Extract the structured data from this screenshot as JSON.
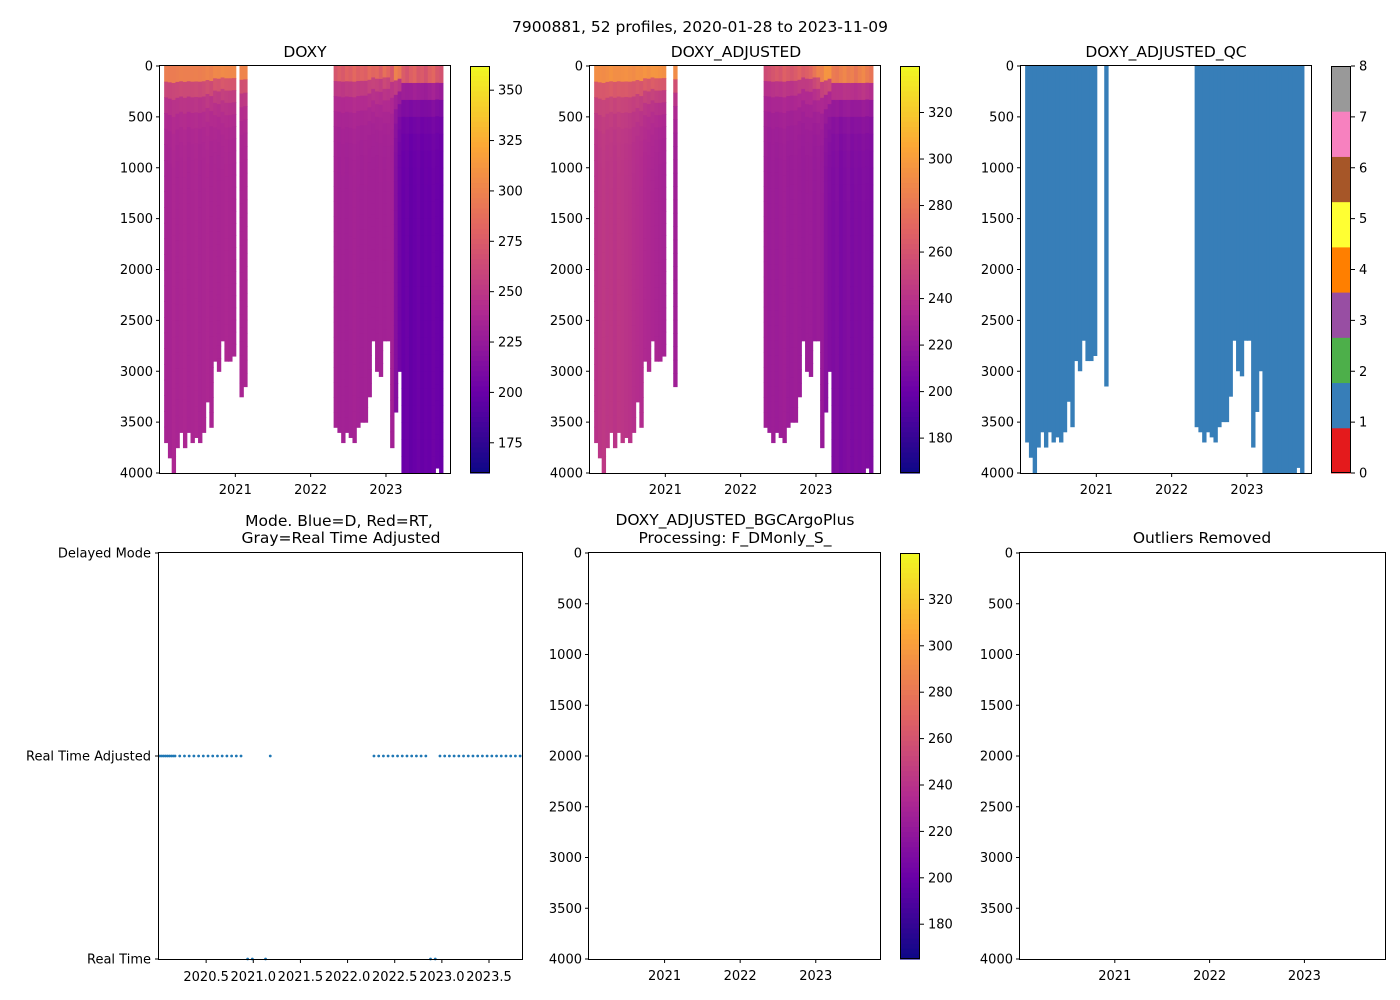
{
  "figure": {
    "suptitle": "7900881, 52 profiles, 2020-01-28 to 2023-11-09"
  },
  "palettes": {
    "plasma_stops": [
      "#f0f921",
      "#fca636",
      "#e16462",
      "#b12a90",
      "#6a00a8",
      "#0d0887"
    ],
    "qc_colors": [
      "#e41a1c",
      "#377eb8",
      "#4daf4a",
      "#984ea3",
      "#ff7f00",
      "#ffff33",
      "#a65628",
      "#f781bf",
      "#999999"
    ],
    "mode_dot_color": "#1f77b4"
  },
  "chart_data": [
    {
      "id": "doxy",
      "type": "heatmap",
      "title": "DOXY",
      "xlabel": "",
      "ylabel": "",
      "xlim": [
        2020.0,
        2023.85
      ],
      "ylim": [
        4000,
        0
      ],
      "ytick_labels": [
        "0",
        "500",
        "1000",
        "1500",
        "2000",
        "2500",
        "3000",
        "3500",
        "4000"
      ],
      "xtick_labels": [
        "2021",
        "2022",
        "2023"
      ],
      "colorbar": {
        "range": [
          160,
          362
        ],
        "tick_labels": [
          "175",
          "200",
          "225",
          "250",
          "275",
          "300",
          "325",
          "350"
        ]
      },
      "profiles": {
        "x": [
          2020.08,
          2020.13,
          2020.18,
          2020.23,
          2020.28,
          2020.33,
          2020.38,
          2020.43,
          2020.48,
          2020.53,
          2020.58,
          2020.63,
          2020.68,
          2020.73,
          2020.78,
          2020.83,
          2020.88,
          2020.93,
          2020.98,
          2021.03,
          2021.08,
          2021.13,
          2021.17,
          2022.33,
          2022.38,
          2022.43,
          2022.48,
          2022.53,
          2022.58,
          2022.63,
          2022.68,
          2022.73,
          2022.78,
          2022.83,
          2022.88,
          2022.93,
          2022.98,
          2023.03,
          2023.08,
          2023.13,
          2023.18,
          2023.23,
          2023.28,
          2023.33,
          2023.38,
          2023.43,
          2023.48,
          2023.53,
          2023.58,
          2023.63,
          2023.68,
          2023.73
        ],
        "max_depth": [
          3700,
          3850,
          4000,
          3750,
          3600,
          3750,
          3600,
          3700,
          3650,
          3700,
          3600,
          3300,
          3550,
          2900,
          3000,
          2700,
          2900,
          2900,
          2850,
          null,
          3250,
          3150,
          null,
          3550,
          3600,
          3700,
          3600,
          3650,
          3700,
          3550,
          3500,
          3500,
          3250,
          2700,
          3000,
          3050,
          2700,
          2700,
          3750,
          3400,
          3000,
          4000,
          4000,
          4000,
          4000,
          4000,
          4000,
          4000,
          4000,
          4000,
          3950,
          4000
        ],
        "surface_value": [
          330,
          330,
          330,
          330,
          330,
          330,
          330,
          330,
          330,
          330,
          330,
          330,
          330,
          330,
          330,
          330,
          330,
          330,
          330,
          null,
          330,
          330,
          null,
          290,
          300,
          295,
          305,
          300,
          310,
          300,
          305,
          300,
          310,
          300,
          305,
          295,
          310,
          300,
          295,
          340,
          330,
          320,
          310,
          325,
          330,
          315,
          320,
          310,
          325,
          330,
          315,
          310
        ],
        "deep_value": [
          235,
          235,
          238,
          236,
          237,
          238,
          236,
          237,
          238,
          236,
          237,
          238,
          236,
          237,
          236,
          237,
          238,
          237,
          236,
          null,
          236,
          237,
          null,
          234,
          232,
          233,
          232,
          233,
          234,
          233,
          232,
          233,
          232,
          232,
          232,
          233,
          232,
          233,
          232,
          215,
          205,
          200,
          202,
          198,
          200,
          202,
          199,
          201,
          200,
          203,
          201,
          200
        ]
      }
    },
    {
      "id": "doxy_adjusted",
      "type": "heatmap",
      "title": "DOXY_ADJUSTED",
      "xlabel": "",
      "ylabel": "",
      "xlim": [
        2020.0,
        2023.85
      ],
      "ylim": [
        4000,
        0
      ],
      "ytick_labels": [
        "0",
        "500",
        "1000",
        "1500",
        "2000",
        "2500",
        "3000",
        "3500",
        "4000"
      ],
      "xtick_labels": [
        "2021",
        "2022",
        "2023"
      ],
      "colorbar": {
        "range": [
          165,
          340
        ],
        "tick_labels": [
          "180",
          "200",
          "220",
          "240",
          "260",
          "280",
          "300",
          "320"
        ]
      },
      "profiles": {
        "x": [
          2020.08,
          2020.13,
          2020.18,
          2020.23,
          2020.28,
          2020.33,
          2020.38,
          2020.43,
          2020.48,
          2020.53,
          2020.58,
          2020.63,
          2020.68,
          2020.73,
          2020.78,
          2020.83,
          2020.88,
          2020.93,
          2020.98,
          2021.03,
          2021.08,
          2021.13,
          2021.17,
          2022.33,
          2022.38,
          2022.43,
          2022.48,
          2022.53,
          2022.58,
          2022.63,
          2022.68,
          2022.73,
          2022.78,
          2022.83,
          2022.88,
          2022.93,
          2022.98,
          2023.03,
          2023.08,
          2023.13,
          2023.18,
          2023.23,
          2023.28,
          2023.33,
          2023.38,
          2023.43,
          2023.48,
          2023.53,
          2023.58,
          2023.63,
          2023.68,
          2023.73
        ],
        "max_depth": [
          3700,
          3850,
          4000,
          3750,
          3600,
          3750,
          3600,
          3700,
          3650,
          3700,
          3600,
          3300,
          3550,
          2900,
          3000,
          2700,
          2900,
          2900,
          2850,
          null,
          null,
          3150,
          null,
          3550,
          3600,
          3700,
          3600,
          3650,
          3700,
          3550,
          3500,
          3500,
          3250,
          2700,
          3000,
          3050,
          2700,
          2700,
          3750,
          3400,
          3000,
          4000,
          4000,
          4000,
          4000,
          4000,
          4000,
          4000,
          4000,
          4000,
          3950,
          4000
        ],
        "surface_value": [
          320,
          320,
          318,
          320,
          322,
          320,
          318,
          320,
          322,
          320,
          318,
          320,
          322,
          320,
          318,
          320,
          322,
          320,
          318,
          null,
          null,
          320,
          null,
          270,
          275,
          280,
          285,
          280,
          290,
          285,
          280,
          285,
          290,
          280,
          285,
          290,
          300,
          310,
          320,
          335,
          330,
          325,
          320,
          330,
          335,
          325,
          330,
          320,
          330,
          335,
          325,
          320
        ],
        "deep_value": [
          240,
          242,
          244,
          242,
          243,
          241,
          243,
          242,
          241,
          240,
          238,
          237,
          236,
          234,
          233,
          232,
          231,
          230,
          229,
          null,
          null,
          226,
          null,
          226,
          224,
          225,
          224,
          225,
          226,
          224,
          224,
          225,
          224,
          223,
          224,
          224,
          222,
          223,
          222,
          215,
          212,
          210,
          212,
          208,
          210,
          212,
          209,
          211,
          210,
          212,
          211,
          210
        ]
      }
    },
    {
      "id": "doxy_adjusted_qc",
      "type": "heatmap",
      "title": "DOXY_ADJUSTED_QC",
      "xlabel": "",
      "ylabel": "",
      "xlim": [
        2020.0,
        2023.85
      ],
      "ylim": [
        4000,
        0
      ],
      "ytick_labels": [
        "0",
        "500",
        "1000",
        "1500",
        "2000",
        "2500",
        "3000",
        "3500",
        "4000"
      ],
      "xtick_labels": [
        "2021",
        "2022",
        "2023"
      ],
      "colorbar": {
        "range": [
          0,
          8
        ],
        "tick_labels": [
          "0",
          "1",
          "2",
          "3",
          "4",
          "5",
          "6",
          "7",
          "8"
        ]
      },
      "qc_flag_value": 1,
      "profiles": {
        "x": [
          2020.08,
          2020.13,
          2020.18,
          2020.23,
          2020.28,
          2020.33,
          2020.38,
          2020.43,
          2020.48,
          2020.53,
          2020.58,
          2020.63,
          2020.68,
          2020.73,
          2020.78,
          2020.83,
          2020.88,
          2020.93,
          2020.98,
          2021.03,
          2021.08,
          2021.13,
          2021.17,
          2022.33,
          2022.38,
          2022.43,
          2022.48,
          2022.53,
          2022.58,
          2022.63,
          2022.68,
          2022.73,
          2022.78,
          2022.83,
          2022.88,
          2022.93,
          2022.98,
          2023.03,
          2023.08,
          2023.13,
          2023.18,
          2023.23,
          2023.28,
          2023.33,
          2023.38,
          2023.43,
          2023.48,
          2023.53,
          2023.58,
          2023.63,
          2023.68,
          2023.73
        ],
        "max_depth": [
          3700,
          3850,
          4000,
          3750,
          3600,
          3750,
          3600,
          3700,
          3650,
          3700,
          3600,
          3300,
          3550,
          2900,
          3000,
          2700,
          2900,
          2900,
          2850,
          null,
          null,
          3150,
          null,
          3550,
          3600,
          3700,
          3600,
          3650,
          3700,
          3550,
          3500,
          3500,
          3250,
          2700,
          3000,
          3050,
          2700,
          2700,
          3750,
          3400,
          3000,
          4000,
          4000,
          4000,
          4000,
          4000,
          4000,
          4000,
          4000,
          4000,
          3950,
          4000
        ]
      }
    },
    {
      "id": "mode",
      "type": "scatter",
      "title": "Mode. Blue=D, Red=RT,\nGray=Real Time Adjusted",
      "title_lines": [
        "Mode. Blue=D, Red=RT,",
        "Gray=Real Time Adjusted"
      ],
      "xlabel": "",
      "ylabel": "",
      "xlim": [
        2020.0,
        2023.85
      ],
      "ylim": [
        0,
        2
      ],
      "xtick_labels": [
        "2020.5",
        "2021.0",
        "2021.5",
        "2022.0",
        "2022.5",
        "2023.0",
        "2023.5"
      ],
      "xticks": [
        2020.5,
        2021.0,
        2021.5,
        2022.0,
        2022.5,
        2023.0,
        2023.5
      ],
      "ytick_labels": [
        "Real Time",
        "Real Time Adjusted",
        "Delayed Mode"
      ],
      "yticks": [
        0,
        1,
        2
      ],
      "series": [
        {
          "name": "Real Time Adjusted",
          "y": 1,
          "x": [
            2020.01,
            2020.03,
            2020.05,
            2020.07,
            2020.09,
            2020.11,
            2020.13,
            2020.15,
            2020.17,
            2020.22,
            2020.27,
            2020.32,
            2020.37,
            2020.42,
            2020.47,
            2020.52,
            2020.57,
            2020.62,
            2020.67,
            2020.72,
            2020.77,
            2020.82,
            2020.87,
            2021.18,
            2022.28,
            2022.33,
            2022.38,
            2022.43,
            2022.48,
            2022.53,
            2022.58,
            2022.63,
            2022.68,
            2022.73,
            2022.78,
            2022.83,
            2022.98,
            2023.03,
            2023.08,
            2023.13,
            2023.18,
            2023.23,
            2023.28,
            2023.33,
            2023.38,
            2023.43,
            2023.48,
            2023.53,
            2023.58,
            2023.63,
            2023.68,
            2023.73,
            2023.78,
            2023.83
          ]
        },
        {
          "name": "Real Time",
          "y": 0,
          "x": [
            2020.94,
            2020.99,
            2021.13,
            2022.88,
            2022.93
          ]
        }
      ]
    },
    {
      "id": "bgcargoplus",
      "type": "heatmap",
      "title": "DOXY_ADJUSTED_BGCArgoPlus\nProcessing: F_DMonly_S_",
      "title_lines": [
        "DOXY_ADJUSTED_BGCArgoPlus",
        "Processing: F_DMonly_S_"
      ],
      "xlabel": "",
      "ylabel": "",
      "xlim": [
        2020.0,
        2023.85
      ],
      "ylim": [
        4000,
        0
      ],
      "ytick_labels": [
        "0",
        "500",
        "1000",
        "1500",
        "2000",
        "2500",
        "3000",
        "3500",
        "4000"
      ],
      "xtick_labels": [
        "2021",
        "2022",
        "2023"
      ],
      "colorbar": {
        "range": [
          165,
          340
        ],
        "tick_labels": [
          "180",
          "200",
          "220",
          "240",
          "260",
          "280",
          "300",
          "320"
        ]
      },
      "profiles": null
    },
    {
      "id": "outliers",
      "type": "heatmap",
      "title": "Outliers Removed",
      "xlabel": "",
      "ylabel": "",
      "xlim": [
        2020.0,
        2023.85
      ],
      "ylim": [
        4000,
        0
      ],
      "ytick_labels": [
        "0",
        "500",
        "1000",
        "1500",
        "2000",
        "2500",
        "3000",
        "3500",
        "4000"
      ],
      "xtick_labels": [
        "2021",
        "2022",
        "2023"
      ],
      "profiles": null
    }
  ]
}
